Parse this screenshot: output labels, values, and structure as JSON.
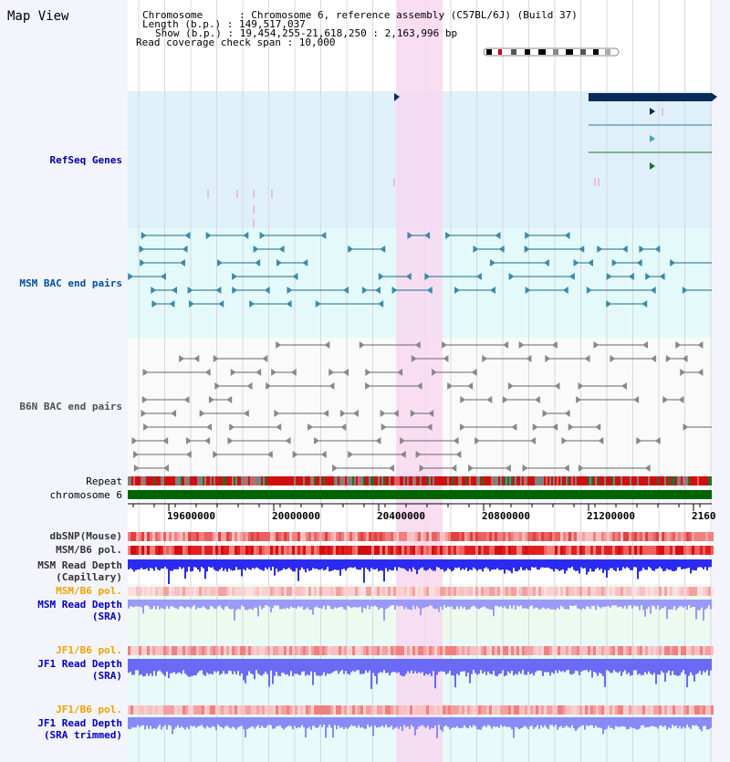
{
  "view_title": "Map View",
  "header": {
    "chromosome_line": "Chromosome      : Chromosome 6, reference assembly (C57BL/6J) (Build 37)",
    "length_line": "Length (b.p.) : 149,517,037",
    "show_line": "Show (b.p.) : 19,454,255-21,618,250 : 2,163,996 bp",
    "coverage_line": "Read coverage check span : 10,000"
  },
  "tracks": {
    "refseq": "RefSeq Genes",
    "msm_bac": "MSM BAC end pairs",
    "b6n_bac": "B6N BAC end pairs",
    "repeat": "Repeat",
    "chromosome": "chromosome 6",
    "dbsnp": "dbSNP(Mouse)",
    "msm_b6_pol_1": "MSM/B6 pol.",
    "msm_depth_cap_1": "MSM Read Depth",
    "msm_depth_cap_2": "(Capillary)",
    "msm_b6_pol_2": "MSM/B6 pol.",
    "msm_depth_sra_1": "MSM Read Depth",
    "msm_depth_sra_2": "(SRA)",
    "jf1_b6_pol_1": "JF1/B6 pol.",
    "jf1_depth_sra_1": "JF1 Read Depth",
    "jf1_depth_sra_2": "(SRA)",
    "jf1_b6_pol_2": "JF1/B6 pol.",
    "jf1_depth_trim_1": "JF1 Read Depth",
    "jf1_depth_trim_2": "(SRA trimmed)"
  },
  "ruler": {
    "ticks": [
      "19600000",
      "20000000",
      "20400000",
      "20800000",
      "21200000",
      "2160"
    ]
  },
  "colors": {
    "refseq_label": "#0000a0",
    "msm_label": "#0050a0",
    "b6n_label": "#505050",
    "orange_label": "#f0a000",
    "blue_label": "#0000c0",
    "highlight": "#f8d8f0",
    "refseq_bg": "#dff0fa",
    "msm_bg": "#e4fafa",
    "chromosome_bar": "#006400"
  }
}
